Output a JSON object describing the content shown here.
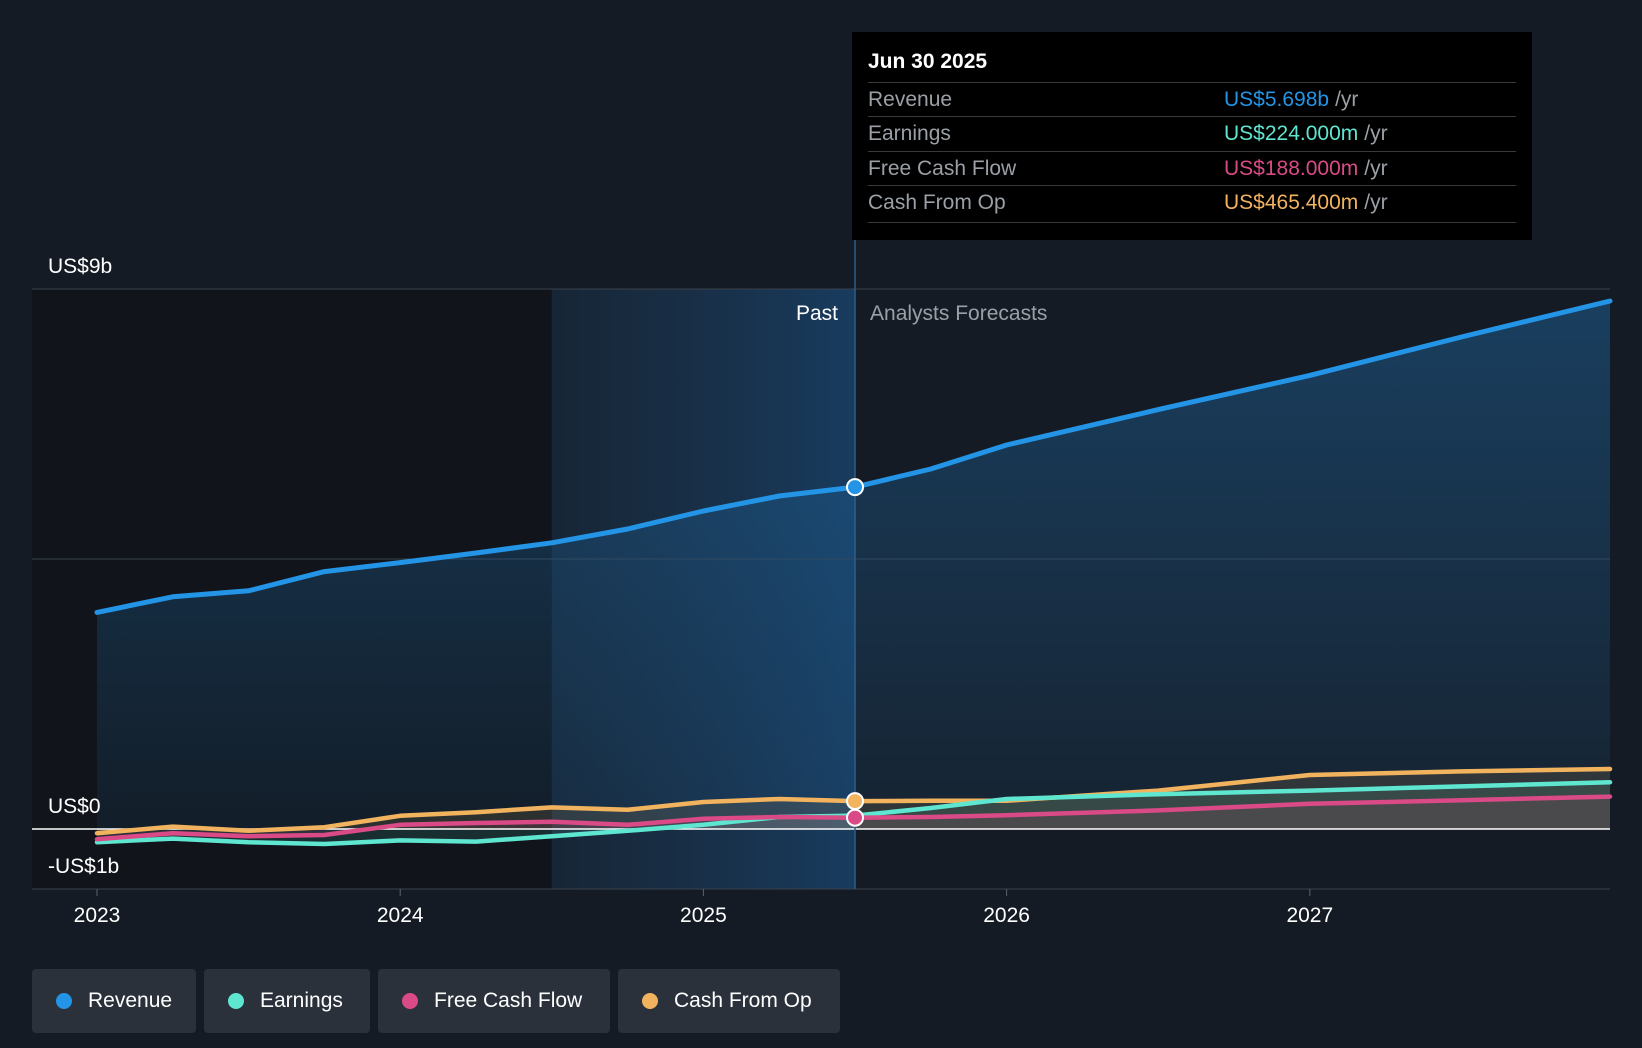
{
  "tooltip": {
    "date": "Jun 30 2025",
    "rows": [
      {
        "label": "Revenue",
        "value": "US$5.698b",
        "unit": "/yr",
        "color": "#2394e6"
      },
      {
        "label": "Earnings",
        "value": "US$224.000m",
        "unit": "/yr",
        "color": "#5ee6d0"
      },
      {
        "label": "Free Cash Flow",
        "value": "US$188.000m",
        "unit": "/yr",
        "color": "#d94a86"
      },
      {
        "label": "Cash From Op",
        "value": "US$465.400m",
        "unit": "/yr",
        "color": "#f2b35e"
      }
    ]
  },
  "legend": [
    {
      "label": "Revenue",
      "color": "#2394e6"
    },
    {
      "label": "Earnings",
      "color": "#5ee6d0"
    },
    {
      "label": "Free Cash Flow",
      "color": "#d94a86"
    },
    {
      "label": "Cash From Op",
      "color": "#f2b35e"
    }
  ],
  "chart_data": {
    "type": "line",
    "y_tick_labels": [
      "US$9b",
      "US$0",
      "-US$1b"
    ],
    "x_tick_labels": [
      "2023",
      "2024",
      "2025",
      "2026",
      "2027"
    ],
    "ylim": [
      -1,
      9
    ],
    "xlim": [
      2023.0,
      2027.99
    ],
    "past_label": "Past",
    "forecast_label": "Analysts Forecasts",
    "divider_x": 2025.5,
    "highlight_start_x": 2024.5,
    "series": [
      {
        "name": "Revenue",
        "color": "#2394e6",
        "area": true,
        "x": [
          2023.0,
          2023.25,
          2023.5,
          2023.75,
          2024.0,
          2024.25,
          2024.5,
          2024.75,
          2025.0,
          2025.25,
          2025.5,
          2025.75,
          2026.0,
          2026.5,
          2027.0,
          2027.5,
          2027.99
        ],
        "y": [
          3.61,
          3.87,
          3.97,
          4.29,
          4.44,
          4.6,
          4.77,
          5.0,
          5.3,
          5.55,
          5.698,
          6.0,
          6.4,
          6.99,
          7.56,
          8.2,
          8.8
        ]
      },
      {
        "name": "Earnings",
        "color": "#5ee6d0",
        "x": [
          2023.0,
          2023.25,
          2023.5,
          2023.75,
          2024.0,
          2024.25,
          2024.5,
          2024.75,
          2025.0,
          2025.25,
          2025.5,
          2025.75,
          2026.0,
          2026.5,
          2027.0,
          2027.5,
          2027.99
        ],
        "y": [
          -0.22,
          -0.16,
          -0.22,
          -0.25,
          -0.19,
          -0.21,
          -0.12,
          -0.03,
          0.07,
          0.2,
          0.224,
          0.35,
          0.5,
          0.58,
          0.64,
          0.71,
          0.78
        ]
      },
      {
        "name": "Free Cash Flow",
        "color": "#d94a86",
        "x": [
          2023.0,
          2023.25,
          2023.5,
          2023.75,
          2024.0,
          2024.25,
          2024.5,
          2024.75,
          2025.0,
          2025.25,
          2025.5,
          2025.75,
          2026.0,
          2026.5,
          2027.0,
          2027.5,
          2027.99
        ],
        "y": [
          -0.17,
          -0.07,
          -0.12,
          -0.1,
          0.07,
          0.1,
          0.12,
          0.07,
          0.17,
          0.2,
          0.188,
          0.2,
          0.23,
          0.31,
          0.42,
          0.48,
          0.54
        ]
      },
      {
        "name": "Cash From Op",
        "color": "#f2b35e",
        "x": [
          2023.0,
          2023.25,
          2023.5,
          2023.75,
          2024.0,
          2024.25,
          2024.5,
          2024.75,
          2025.0,
          2025.25,
          2025.5,
          2025.75,
          2026.0,
          2026.5,
          2027.0,
          2027.5,
          2027.99
        ],
        "y": [
          -0.07,
          0.04,
          -0.03,
          0.03,
          0.22,
          0.28,
          0.36,
          0.32,
          0.45,
          0.5,
          0.4654,
          0.47,
          0.47,
          0.64,
          0.9,
          0.96,
          1.0
        ]
      }
    ]
  }
}
